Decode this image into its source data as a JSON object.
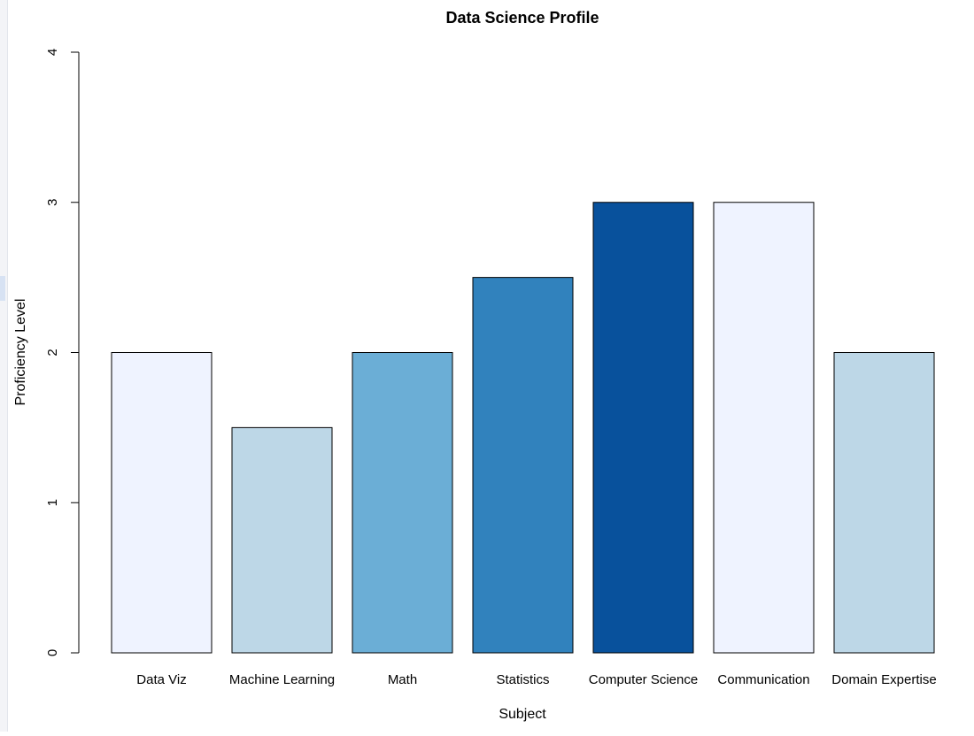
{
  "chart_data": {
    "type": "bar",
    "title": "Data Science Profile",
    "xlabel": "Subject",
    "ylabel": "Proficiency Level",
    "categories": [
      "Data Viz",
      "Machine Learning",
      "Math",
      "Statistics",
      "Computer Science",
      "Communication",
      "Domain Expertise"
    ],
    "values": [
      2,
      1.5,
      2,
      2.5,
      3,
      3,
      2
    ],
    "colors": [
      "#EFF3FF",
      "#BDD7E7",
      "#6BAED6",
      "#3182BD",
      "#08519C",
      "#EFF3FF",
      "#BDD7E7"
    ],
    "ylim": [
      0,
      4
    ],
    "yticks": [
      0,
      1,
      2,
      3,
      4
    ],
    "grid": false,
    "legend": "none"
  }
}
